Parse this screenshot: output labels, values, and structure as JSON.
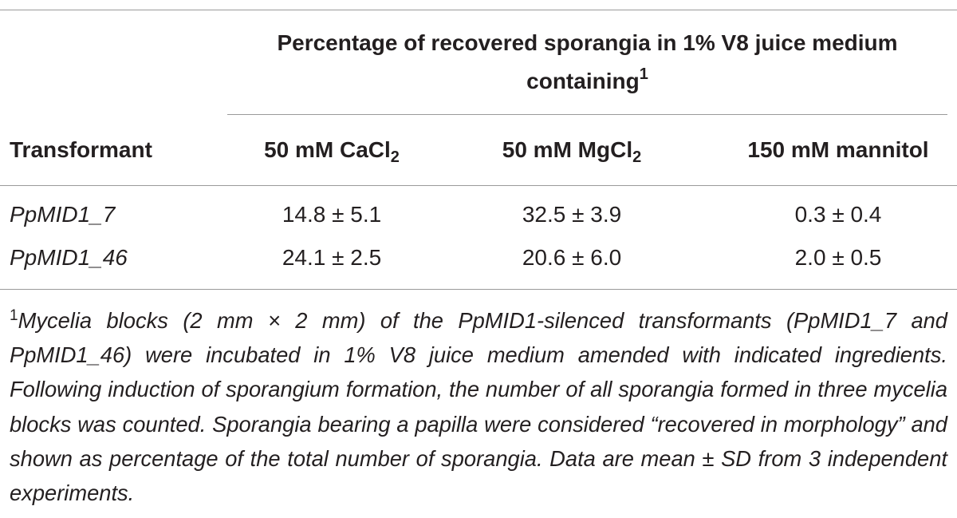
{
  "table": {
    "group_header": {
      "text": "Percentage of recovered sporangia in 1% V8 juice medium containing",
      "footnote_mark": "1"
    },
    "columns": [
      {
        "text": "Transformant"
      },
      {
        "text": "50 mM CaCl",
        "sub": "2"
      },
      {
        "text": "50 mM MgCl",
        "sub": "2"
      },
      {
        "text": "150 mM mannitol"
      }
    ],
    "rows": [
      [
        "PpMID1_7",
        "14.8 ± 5.1",
        "32.5 ± 3.9",
        "0.3 ± 0.4"
      ],
      [
        "PpMID1_46",
        "24.1 ± 2.5",
        "20.6 ± 6.0",
        "2.0 ± 0.5"
      ]
    ]
  },
  "footnote": {
    "mark": "1",
    "text": "Mycelia blocks (2 mm × 2 mm) of the PpMID1-silenced transformants (PpMID1_7 and PpMID1_46) were incubated in 1% V8 juice medium amended with indicated ingredients. Following induction of sporangium formation, the number of all sporangia formed in three mycelia blocks was counted. Sporangia bearing a papilla were considered “recovered in morphology” and shown as percentage of the total number of sporangia. Data are mean ± SD from 3 independent experiments."
  }
}
